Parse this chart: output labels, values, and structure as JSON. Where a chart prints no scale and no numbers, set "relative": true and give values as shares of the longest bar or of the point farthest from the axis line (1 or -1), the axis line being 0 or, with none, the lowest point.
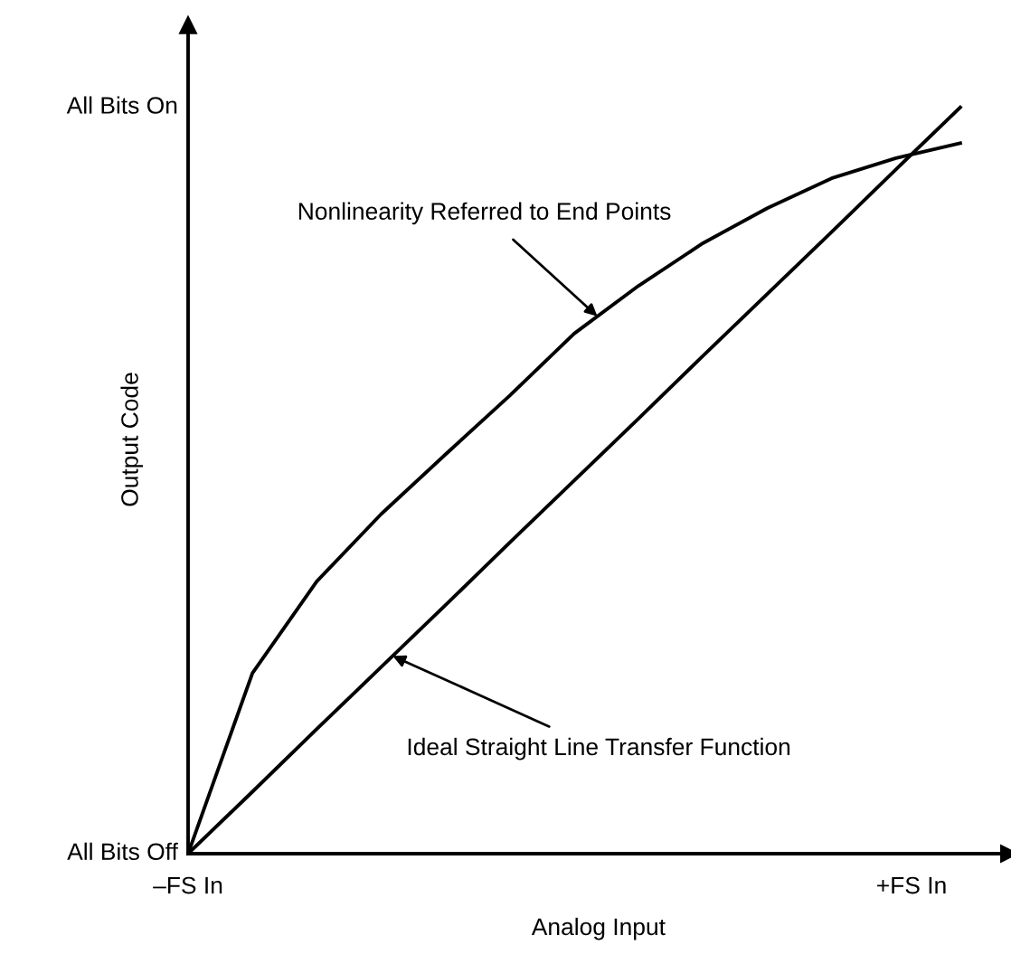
{
  "chart_data": {
    "type": "line",
    "xlabel": "Analog Input",
    "ylabel": "Output Code",
    "relative": true,
    "categories": [
      null,
      null,
      null,
      null,
      null,
      null,
      null,
      null,
      null,
      null,
      null,
      null,
      null
    ],
    "legend": false,
    "marker": "none",
    "line_style": "solid",
    "series": [
      {
        "color": "#000000",
        "values": [
          0,
          0.242,
          0.365,
          0.455,
          0.535,
          0.614,
          0.697,
          0.761,
          0.818,
          0.865,
          0.905,
          0.932,
          0.952
        ]
      },
      {
        "color": "#000000",
        "values": [
          0,
          0.083,
          0.167,
          0.25,
          0.333,
          0.417,
          0.5,
          0.583,
          0.667,
          0.75,
          0.833,
          0.917,
          1.0
        ]
      }
    ],
    "annotations": [
      "Nonlinearity Referred to End Points",
      "Ideal Straight Line Transfer Function",
      "All Bits On",
      "All Bits Off",
      "–FS In",
      "+FS In"
    ]
  }
}
